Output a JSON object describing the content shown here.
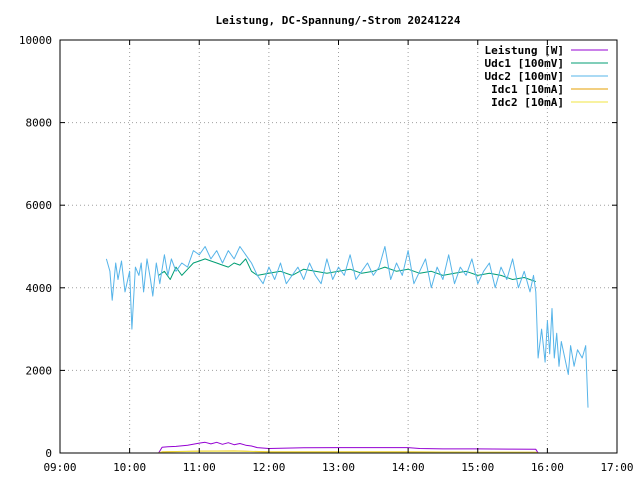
{
  "chart_data": {
    "type": "line",
    "title": "Leistung, DC-Spannung/-Strom 20241224",
    "xlabel": "",
    "ylabel": "",
    "xlim": [
      "09:00",
      "17:00"
    ],
    "ylim": [
      0,
      10000
    ],
    "x_ticks": [
      "09:00",
      "10:00",
      "11:00",
      "12:00",
      "13:00",
      "14:00",
      "15:00",
      "16:00",
      "17:00"
    ],
    "y_ticks": [
      "0",
      "2000",
      "4000",
      "6000",
      "8000",
      "10000"
    ],
    "grid": true,
    "legend_position": "top-right",
    "series": [
      {
        "name": "Leistung [W]",
        "color": "#9400d3",
        "points": [
          [
            "10:25",
            0
          ],
          [
            "10:28",
            140
          ],
          [
            "10:33",
            150
          ],
          [
            "10:40",
            160
          ],
          [
            "10:50",
            190
          ],
          [
            "11:00",
            240
          ],
          [
            "11:05",
            260
          ],
          [
            "11:10",
            220
          ],
          [
            "11:15",
            260
          ],
          [
            "11:20",
            210
          ],
          [
            "11:25",
            250
          ],
          [
            "11:30",
            200
          ],
          [
            "11:35",
            230
          ],
          [
            "11:40",
            190
          ],
          [
            "11:45",
            170
          ],
          [
            "11:50",
            130
          ],
          [
            "12:00",
            110
          ],
          [
            "12:30",
            125
          ],
          [
            "13:00",
            130
          ],
          [
            "13:30",
            130
          ],
          [
            "14:00",
            130
          ],
          [
            "14:10",
            110
          ],
          [
            "14:30",
            100
          ],
          [
            "15:00",
            100
          ],
          [
            "15:30",
            95
          ],
          [
            "15:50",
            90
          ],
          [
            "15:52",
            0
          ]
        ]
      },
      {
        "name": "Udc1 [100mV]",
        "color": "#009e73",
        "points": [
          [
            "10:25",
            4300
          ],
          [
            "10:30",
            4400
          ],
          [
            "10:35",
            4200
          ],
          [
            "10:40",
            4500
          ],
          [
            "10:45",
            4300
          ],
          [
            "10:50",
            4450
          ],
          [
            "10:55",
            4600
          ],
          [
            "11:00",
            4650
          ],
          [
            "11:05",
            4700
          ],
          [
            "11:10",
            4650
          ],
          [
            "11:15",
            4600
          ],
          [
            "11:20",
            4550
          ],
          [
            "11:25",
            4500
          ],
          [
            "11:30",
            4600
          ],
          [
            "11:35",
            4550
          ],
          [
            "11:40",
            4700
          ],
          [
            "11:45",
            4400
          ],
          [
            "11:50",
            4300
          ],
          [
            "12:00",
            4350
          ],
          [
            "12:10",
            4400
          ],
          [
            "12:20",
            4300
          ],
          [
            "12:30",
            4450
          ],
          [
            "12:40",
            4400
          ],
          [
            "12:50",
            4350
          ],
          [
            "13:00",
            4400
          ],
          [
            "13:10",
            4450
          ],
          [
            "13:20",
            4350
          ],
          [
            "13:30",
            4400
          ],
          [
            "13:40",
            4500
          ],
          [
            "13:50",
            4400
          ],
          [
            "14:00",
            4450
          ],
          [
            "14:10",
            4350
          ],
          [
            "14:20",
            4400
          ],
          [
            "14:30",
            4300
          ],
          [
            "14:40",
            4350
          ],
          [
            "14:50",
            4400
          ],
          [
            "15:00",
            4300
          ],
          [
            "15:10",
            4350
          ],
          [
            "15:20",
            4300
          ],
          [
            "15:30",
            4200
          ],
          [
            "15:40",
            4250
          ],
          [
            "15:50",
            4150
          ]
        ]
      },
      {
        "name": "Udc2 [100mV]",
        "color": "#56b4e9",
        "points": [
          [
            "09:40",
            4700
          ],
          [
            "09:43",
            4400
          ],
          [
            "09:45",
            3700
          ],
          [
            "09:48",
            4600
          ],
          [
            "09:50",
            4200
          ],
          [
            "09:53",
            4650
          ],
          [
            "09:56",
            3900
          ],
          [
            "10:00",
            4400
          ],
          [
            "10:02",
            3000
          ],
          [
            "10:05",
            4500
          ],
          [
            "10:08",
            4300
          ],
          [
            "10:10",
            4600
          ],
          [
            "10:12",
            3900
          ],
          [
            "10:15",
            4700
          ],
          [
            "10:18",
            4200
          ],
          [
            "10:20",
            3800
          ],
          [
            "10:23",
            4600
          ],
          [
            "10:26",
            4100
          ],
          [
            "10:30",
            4800
          ],
          [
            "10:33",
            4300
          ],
          [
            "10:36",
            4700
          ],
          [
            "10:40",
            4400
          ],
          [
            "10:45",
            4600
          ],
          [
            "10:50",
            4500
          ],
          [
            "10:55",
            4900
          ],
          [
            "11:00",
            4800
          ],
          [
            "11:05",
            5000
          ],
          [
            "11:10",
            4700
          ],
          [
            "11:15",
            4900
          ],
          [
            "11:20",
            4600
          ],
          [
            "11:25",
            4900
          ],
          [
            "11:30",
            4700
          ],
          [
            "11:35",
            5000
          ],
          [
            "11:40",
            4800
          ],
          [
            "11:45",
            4600
          ],
          [
            "11:50",
            4300
          ],
          [
            "11:55",
            4100
          ],
          [
            "12:00",
            4500
          ],
          [
            "12:05",
            4200
          ],
          [
            "12:10",
            4600
          ],
          [
            "12:15",
            4100
          ],
          [
            "12:20",
            4300
          ],
          [
            "12:25",
            4500
          ],
          [
            "12:30",
            4200
          ],
          [
            "12:35",
            4600
          ],
          [
            "12:40",
            4300
          ],
          [
            "12:45",
            4100
          ],
          [
            "12:50",
            4700
          ],
          [
            "12:55",
            4200
          ],
          [
            "13:00",
            4500
          ],
          [
            "13:05",
            4300
          ],
          [
            "13:10",
            4800
          ],
          [
            "13:15",
            4200
          ],
          [
            "13:20",
            4400
          ],
          [
            "13:25",
            4600
          ],
          [
            "13:30",
            4300
          ],
          [
            "13:35",
            4500
          ],
          [
            "13:40",
            5000
          ],
          [
            "13:45",
            4200
          ],
          [
            "13:50",
            4600
          ],
          [
            "13:55",
            4300
          ],
          [
            "14:00",
            4900
          ],
          [
            "14:05",
            4100
          ],
          [
            "14:10",
            4400
          ],
          [
            "14:15",
            4700
          ],
          [
            "14:20",
            4000
          ],
          [
            "14:25",
            4500
          ],
          [
            "14:30",
            4200
          ],
          [
            "14:35",
            4800
          ],
          [
            "14:40",
            4100
          ],
          [
            "14:45",
            4500
          ],
          [
            "14:50",
            4300
          ],
          [
            "14:55",
            4700
          ],
          [
            "15:00",
            4100
          ],
          [
            "15:05",
            4400
          ],
          [
            "15:10",
            4600
          ],
          [
            "15:15",
            4000
          ],
          [
            "15:20",
            4500
          ],
          [
            "15:25",
            4200
          ],
          [
            "15:30",
            4700
          ],
          [
            "15:35",
            4000
          ],
          [
            "15:40",
            4400
          ],
          [
            "15:45",
            3900
          ],
          [
            "15:48",
            4300
          ],
          [
            "15:50",
            3900
          ],
          [
            "15:52",
            2300
          ],
          [
            "15:55",
            3000
          ],
          [
            "15:58",
            2200
          ],
          [
            "16:00",
            3200
          ],
          [
            "16:02",
            2400
          ],
          [
            "16:04",
            3500
          ],
          [
            "16:06",
            2300
          ],
          [
            "16:08",
            2900
          ],
          [
            "16:10",
            2100
          ],
          [
            "16:12",
            2700
          ],
          [
            "16:15",
            2300
          ],
          [
            "16:18",
            1900
          ],
          [
            "16:20",
            2600
          ],
          [
            "16:23",
            2100
          ],
          [
            "16:26",
            2500
          ],
          [
            "16:30",
            2300
          ],
          [
            "16:33",
            2600
          ],
          [
            "16:35",
            1100
          ]
        ]
      },
      {
        "name": "Idc1 [10mA]",
        "color": "#e69f00",
        "points": [
          [
            "10:25",
            0
          ],
          [
            "10:28",
            30
          ],
          [
            "11:00",
            45
          ],
          [
            "11:30",
            50
          ],
          [
            "12:00",
            30
          ],
          [
            "13:00",
            30
          ],
          [
            "14:00",
            30
          ],
          [
            "15:00",
            20
          ],
          [
            "15:50",
            20
          ],
          [
            "15:52",
            0
          ]
        ]
      },
      {
        "name": "Idc2 [10mA]",
        "color": "#f0e442",
        "points": [
          [
            "10:25",
            0
          ],
          [
            "10:28",
            25
          ],
          [
            "11:00",
            40
          ],
          [
            "11:30",
            45
          ],
          [
            "12:00",
            25
          ],
          [
            "13:00",
            25
          ],
          [
            "14:00",
            25
          ],
          [
            "15:00",
            20
          ],
          [
            "15:50",
            15
          ],
          [
            "15:52",
            0
          ]
        ]
      }
    ]
  }
}
